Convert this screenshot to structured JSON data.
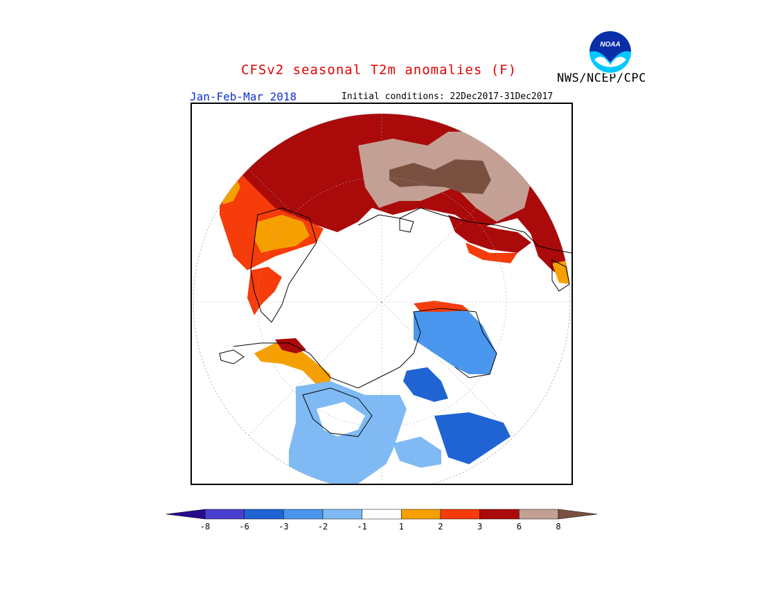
{
  "header": {
    "title": "CFSv2 seasonal T2m anomalies (F)",
    "agency": "NWS/NCEP/CPC",
    "season": "Jan-Feb-Mar 2018",
    "initial_conditions": "Initial conditions: 22Dec2017-31Dec2017",
    "logo_text": "NOAA"
  },
  "map": {
    "projection": "north polar stereographic",
    "variable": "T2m anomalies",
    "units": "F"
  },
  "legend": {
    "bins": [
      {
        "range": "< -8",
        "color": "#2a0a8c"
      },
      {
        "range": "-8 to -6",
        "color": "#4a3ed0"
      },
      {
        "range": "-6 to -3",
        "color": "#1f64d2"
      },
      {
        "range": "-3 to -2",
        "color": "#4a96ee"
      },
      {
        "range": "-2 to -1",
        "color": "#7fbaf4"
      },
      {
        "range": "-1 to 1",
        "color": "#ffffff"
      },
      {
        "range": "1 to 2",
        "color": "#f5a000"
      },
      {
        "range": "2 to 3",
        "color": "#f53c0a"
      },
      {
        "range": "3 to 6",
        "color": "#aa0a0a"
      },
      {
        "range": "6 to 8",
        "color": "#c4a094"
      },
      {
        "range": "> 8",
        "color": "#7a5040"
      }
    ],
    "ticks": [
      "-8",
      "-6",
      "-3",
      "-2",
      "-1",
      "1",
      "2",
      "3",
      "6",
      "8"
    ]
  }
}
